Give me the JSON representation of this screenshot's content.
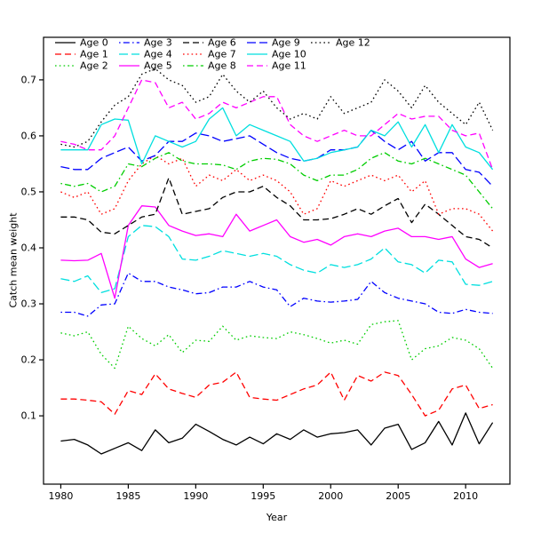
{
  "chart_data": {
    "type": "line",
    "title": "",
    "xlabel": "Year",
    "ylabel": "Catch mean weight",
    "grid": false,
    "legend_position": "top-left-inside",
    "xlim": [
      1978.72,
      2013.28
    ],
    "ylim": [
      -0.022,
      0.776
    ],
    "x_ticks": [
      1980,
      1985,
      1990,
      1995,
      2000,
      2005,
      2010
    ],
    "x_tick_labels": [
      "1980",
      "1985",
      "1990",
      "1995",
      "2000",
      "2005",
      "2010"
    ],
    "y_ticks": [
      0.1,
      0.2,
      0.3,
      0.4,
      0.5,
      0.6,
      0.7
    ],
    "y_tick_labels": [
      "0.1",
      "0.2",
      "0.3",
      "0.4",
      "0.5",
      "0.6",
      "0.7"
    ],
    "x": [
      1980,
      1981,
      1982,
      1983,
      1984,
      1985,
      1986,
      1987,
      1988,
      1989,
      1990,
      1991,
      1992,
      1993,
      1994,
      1995,
      1996,
      1997,
      1998,
      1999,
      2000,
      2001,
      2002,
      2003,
      2004,
      2005,
      2006,
      2007,
      2008,
      2009,
      2010,
      2011,
      2012
    ],
    "series": [
      {
        "name": "Age 0",
        "color": "#000000",
        "lty": "solid",
        "values": [
          0.055,
          0.058,
          0.048,
          0.032,
          0.042,
          0.052,
          0.038,
          0.075,
          0.052,
          0.06,
          0.085,
          0.072,
          0.058,
          0.048,
          0.062,
          0.05,
          0.068,
          0.058,
          0.075,
          0.062,
          0.068,
          0.07,
          0.075,
          0.048,
          0.078,
          0.085,
          0.04,
          0.052,
          0.09,
          0.048,
          0.105,
          0.05,
          0.088
        ]
      },
      {
        "name": "Age 1",
        "color": "#FF0000",
        "lty": "dashed",
        "values": [
          0.13,
          0.13,
          0.128,
          0.125,
          0.103,
          0.145,
          0.138,
          0.175,
          0.148,
          0.14,
          0.133,
          0.155,
          0.16,
          0.178,
          0.133,
          0.13,
          0.128,
          0.138,
          0.148,
          0.155,
          0.178,
          0.128,
          0.172,
          0.162,
          0.178,
          0.172,
          0.138,
          0.1,
          0.11,
          0.148,
          0.155,
          0.113,
          0.12
        ]
      },
      {
        "name": "Age 2",
        "color": "#00CD00",
        "lty": "dotted",
        "values": [
          0.248,
          0.243,
          0.25,
          0.21,
          0.185,
          0.26,
          0.238,
          0.225,
          0.245,
          0.213,
          0.235,
          0.233,
          0.26,
          0.235,
          0.243,
          0.24,
          0.238,
          0.25,
          0.245,
          0.238,
          0.23,
          0.235,
          0.228,
          0.263,
          0.268,
          0.27,
          0.2,
          0.22,
          0.225,
          0.24,
          0.235,
          0.22,
          0.185
        ]
      },
      {
        "name": "Age 3",
        "color": "#0000FF",
        "lty": "dotdash",
        "values": [
          0.285,
          0.285,
          0.278,
          0.298,
          0.3,
          0.355,
          0.34,
          0.34,
          0.33,
          0.325,
          0.318,
          0.32,
          0.33,
          0.33,
          0.34,
          0.33,
          0.325,
          0.295,
          0.31,
          0.305,
          0.303,
          0.305,
          0.308,
          0.34,
          0.32,
          0.31,
          0.305,
          0.3,
          0.285,
          0.283,
          0.29,
          0.285,
          0.283
        ]
      },
      {
        "name": "Age 4",
        "color": "#00DFDF",
        "lty": "longdash",
        "values": [
          0.345,
          0.34,
          0.35,
          0.32,
          0.327,
          0.42,
          0.44,
          0.438,
          0.42,
          0.38,
          0.378,
          0.385,
          0.395,
          0.39,
          0.385,
          0.39,
          0.385,
          0.37,
          0.36,
          0.355,
          0.37,
          0.365,
          0.37,
          0.38,
          0.4,
          0.375,
          0.37,
          0.355,
          0.378,
          0.375,
          0.335,
          0.333,
          0.34
        ]
      },
      {
        "name": "Age 5",
        "color": "#FF00FF",
        "lty": "solid",
        "values": [
          0.378,
          0.377,
          0.378,
          0.39,
          0.31,
          0.44,
          0.475,
          0.473,
          0.44,
          0.43,
          0.422,
          0.425,
          0.42,
          0.46,
          0.43,
          0.44,
          0.45,
          0.42,
          0.41,
          0.415,
          0.405,
          0.42,
          0.425,
          0.42,
          0.43,
          0.435,
          0.42,
          0.42,
          0.415,
          0.42,
          0.38,
          0.365,
          0.372
        ]
      },
      {
        "name": "Age 6",
        "color": "#000000",
        "lty": "dashed",
        "values": [
          0.455,
          0.455,
          0.45,
          0.428,
          0.425,
          0.44,
          0.455,
          0.46,
          0.525,
          0.46,
          0.465,
          0.47,
          0.49,
          0.5,
          0.5,
          0.51,
          0.49,
          0.475,
          0.45,
          0.45,
          0.452,
          0.46,
          0.47,
          0.46,
          0.475,
          0.488,
          0.445,
          0.478,
          0.46,
          0.44,
          0.42,
          0.415,
          0.4
        ]
      },
      {
        "name": "Age 7",
        "color": "#FF0000",
        "lty": "dotted",
        "values": [
          0.5,
          0.49,
          0.5,
          0.46,
          0.47,
          0.52,
          0.55,
          0.565,
          0.55,
          0.56,
          0.51,
          0.53,
          0.52,
          0.54,
          0.52,
          0.53,
          0.52,
          0.5,
          0.46,
          0.47,
          0.52,
          0.51,
          0.52,
          0.53,
          0.52,
          0.53,
          0.5,
          0.52,
          0.46,
          0.47,
          0.47,
          0.46,
          0.43
        ]
      },
      {
        "name": "Age 8",
        "color": "#00CD00",
        "lty": "dotdash",
        "values": [
          0.515,
          0.51,
          0.515,
          0.5,
          0.51,
          0.55,
          0.545,
          0.56,
          0.57,
          0.555,
          0.55,
          0.55,
          0.548,
          0.54,
          0.555,
          0.56,
          0.558,
          0.55,
          0.53,
          0.52,
          0.53,
          0.53,
          0.54,
          0.56,
          0.57,
          0.555,
          0.55,
          0.56,
          0.55,
          0.54,
          0.53,
          0.5,
          0.47
        ]
      },
      {
        "name": "Age 9",
        "color": "#0000FF",
        "lty": "longdash",
        "values": [
          0.545,
          0.54,
          0.54,
          0.56,
          0.57,
          0.58,
          0.555,
          0.565,
          0.59,
          0.59,
          0.605,
          0.6,
          0.59,
          0.595,
          0.6,
          0.585,
          0.57,
          0.56,
          0.555,
          0.56,
          0.575,
          0.575,
          0.58,
          0.61,
          0.59,
          0.575,
          0.59,
          0.555,
          0.57,
          0.57,
          0.54,
          0.535,
          0.51
        ]
      },
      {
        "name": "Age 10",
        "color": "#00DFDF",
        "lty": "solid",
        "values": [
          0.575,
          0.575,
          0.575,
          0.62,
          0.63,
          0.628,
          0.55,
          0.6,
          0.59,
          0.58,
          0.59,
          0.63,
          0.65,
          0.6,
          0.62,
          0.61,
          0.6,
          0.59,
          0.555,
          0.56,
          0.57,
          0.575,
          0.58,
          0.61,
          0.6,
          0.625,
          0.58,
          0.62,
          0.57,
          0.62,
          0.58,
          0.57,
          0.54
        ]
      },
      {
        "name": "Age 11",
        "color": "#FF00FF",
        "lty": "dashed",
        "values": [
          0.59,
          0.585,
          0.575,
          0.575,
          0.6,
          0.65,
          0.7,
          0.695,
          0.65,
          0.66,
          0.63,
          0.64,
          0.66,
          0.65,
          0.66,
          0.67,
          0.67,
          0.62,
          0.6,
          0.59,
          0.6,
          0.61,
          0.6,
          0.6,
          0.62,
          0.64,
          0.63,
          0.635,
          0.635,
          0.61,
          0.6,
          0.605,
          0.54
        ]
      },
      {
        "name": "Age 12",
        "color": "#000000",
        "lty": "dotted",
        "values": [
          0.585,
          0.58,
          0.59,
          0.625,
          0.655,
          0.67,
          0.71,
          0.72,
          0.7,
          0.69,
          0.66,
          0.67,
          0.71,
          0.68,
          0.66,
          0.68,
          0.65,
          0.63,
          0.64,
          0.63,
          0.67,
          0.64,
          0.65,
          0.66,
          0.7,
          0.68,
          0.65,
          0.69,
          0.66,
          0.64,
          0.62,
          0.66,
          0.61
        ]
      }
    ]
  }
}
